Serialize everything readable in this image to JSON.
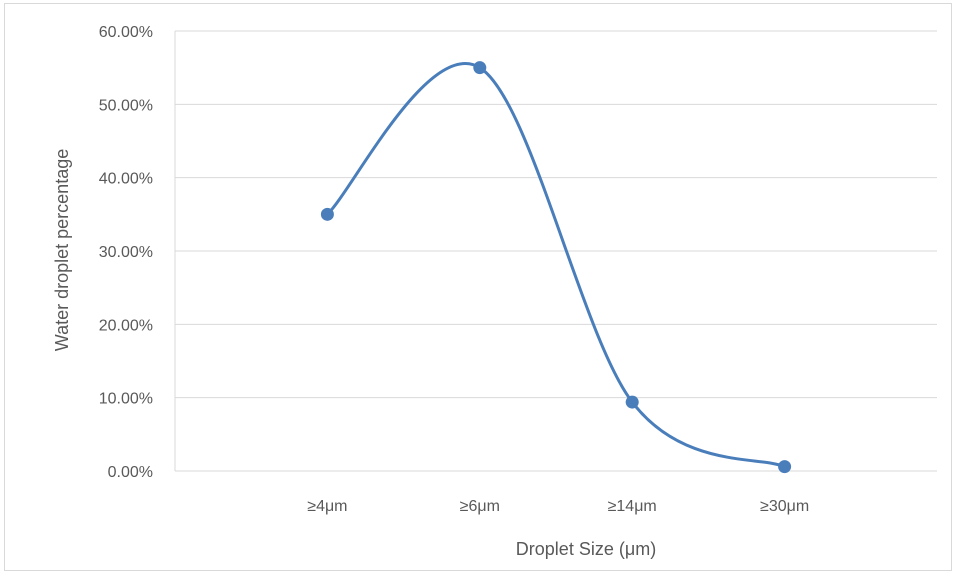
{
  "chart_data": {
    "type": "line",
    "smooth": true,
    "markers": true,
    "categories": [
      "≥4μm",
      "≥6μm",
      "≥14μm",
      "≥30μm"
    ],
    "series": [
      {
        "values": [
          0.35,
          0.55,
          0.094,
          0.006
        ],
        "color": "#4a7ebb"
      }
    ],
    "xlabel": "Droplet Size (μm)",
    "ylabel": "Water droplet percentage",
    "ylim": [
      0,
      0.6
    ],
    "yticks": [
      "0.00%",
      "10.00%",
      "20.00%",
      "30.00%",
      "40.00%",
      "50.00%",
      "60.00%"
    ],
    "grid": true,
    "legend": false,
    "gridline_color": "#d9d9d9"
  }
}
